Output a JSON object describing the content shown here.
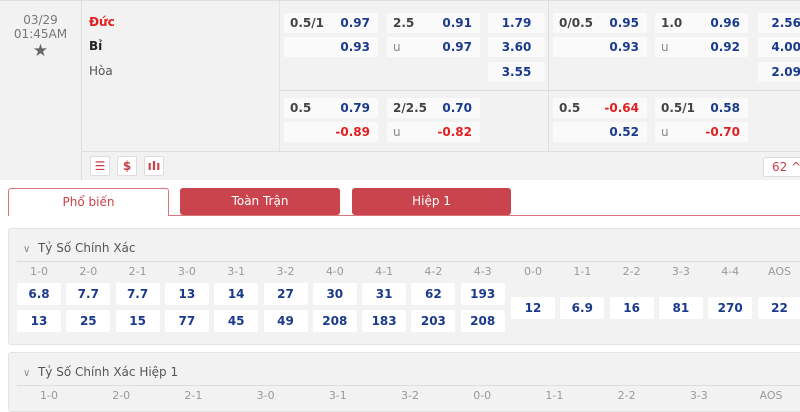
{
  "match": {
    "date": "03/29",
    "time": "01:45AM",
    "favorite_icon": "star-icon",
    "home": "Đức",
    "away": "Bỉ",
    "draw": "Hòa",
    "colors": {
      "accent": "#c9444c",
      "home": "#e02020",
      "odds": "#1a3a8c",
      "negative": "#e02020"
    },
    "full_time": {
      "handicap": {
        "line": "0.5/1",
        "home": "0.97",
        "away": "0.93"
      },
      "over_under": {
        "line": "2.5",
        "under_label": "u",
        "over": "0.91",
        "under": "0.97"
      },
      "one_x_two": {
        "home": "1.79",
        "away": "3.60",
        "draw": "3.55"
      },
      "alt_handicap": {
        "line": "0.5",
        "home": "0.79",
        "away": "-0.89"
      },
      "alt_over_under": {
        "line": "2/2.5",
        "under_label": "u",
        "over": "0.70",
        "under": "-0.82"
      }
    },
    "first_half": {
      "handicap": {
        "line": "0/0.5",
        "home": "0.95",
        "away": "0.93"
      },
      "over_under": {
        "line": "1.0",
        "under_label": "u",
        "over": "0.96",
        "under": "0.92"
      },
      "one_x_two": {
        "home": "2.56",
        "away": "4.00",
        "draw": "2.09"
      },
      "alt_handicap": {
        "line": "0.5",
        "home": "-0.64",
        "away": "0.52"
      },
      "alt_over_under": {
        "line": "0.5/1",
        "under_label": "u",
        "over": "0.58",
        "under": "-0.70"
      }
    },
    "more_count": "62",
    "action_icons": [
      "list-icon",
      "dollar-icon",
      "stats-icon"
    ]
  },
  "tabs": [
    {
      "label": "Phổ biến",
      "active": true
    },
    {
      "label": "Toàn Trận"
    },
    {
      "label": "Hiệp 1"
    }
  ],
  "correct_score": {
    "title": "Tỷ Số Chính Xác",
    "home_cols": [
      "1-0",
      "2-0",
      "2-1",
      "3-0",
      "3-1",
      "3-2",
      "4-0",
      "4-1",
      "4-2",
      "4-3"
    ],
    "home_odds": [
      "6.8",
      "7.7",
      "7.7",
      "13",
      "14",
      "27",
      "30",
      "31",
      "62",
      "193"
    ],
    "away_odds": [
      "13",
      "25",
      "15",
      "77",
      "45",
      "49",
      "208",
      "183",
      "203",
      "208"
    ],
    "draw_cols": [
      "0-0",
      "1-1",
      "2-2",
      "3-3",
      "4-4",
      "AOS"
    ],
    "draw_odds": [
      "12",
      "6.9",
      "16",
      "81",
      "270",
      "22"
    ]
  },
  "correct_score_h1": {
    "title": "Tỷ Số Chính Xác Hiệp 1",
    "cols": [
      "1-0",
      "2-0",
      "2-1",
      "3-0",
      "3-1",
      "3-2",
      "0-0",
      "1-1",
      "2-2",
      "3-3",
      "AOS"
    ]
  }
}
